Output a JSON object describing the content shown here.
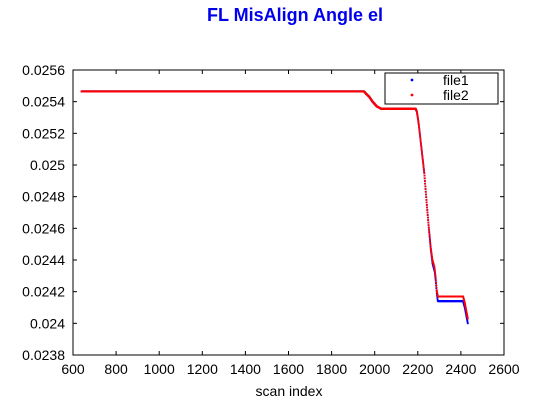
{
  "chart_data": {
    "type": "scatter",
    "title": "FL MisAlign Angle el",
    "xlabel": "scan index",
    "ylabel": "",
    "xlim": [
      600,
      2600
    ],
    "ylim": [
      0.0238,
      0.0256
    ],
    "xticks": [
      "600",
      "800",
      "1000",
      "1200",
      "1400",
      "1600",
      "1800",
      "2000",
      "2200",
      "2400",
      "2600"
    ],
    "yticks": [
      "0.0238",
      "0.024",
      "0.0242",
      "0.0244",
      "0.0246",
      "0.0248",
      "0.025",
      "0.0252",
      "0.0254",
      "0.0256"
    ],
    "grid": false,
    "legend": "top-right",
    "series": [
      {
        "name": "file1",
        "color": "#0000ff",
        "points": [
          [
            640,
            0.025465
          ],
          [
            1950,
            0.025465
          ],
          [
            1960,
            0.02545
          ],
          [
            1975,
            0.02543
          ],
          [
            1990,
            0.0254
          ],
          [
            2010,
            0.02537
          ],
          [
            2030,
            0.025355
          ],
          [
            2190,
            0.025355
          ],
          [
            2195,
            0.02534
          ],
          [
            2200,
            0.0253
          ],
          [
            2205,
            0.02525
          ],
          [
            2215,
            0.02513
          ],
          [
            2230,
            0.02495
          ],
          [
            2240,
            0.02478
          ],
          [
            2250,
            0.02462
          ],
          [
            2260,
            0.02447
          ],
          [
            2268,
            0.02438
          ],
          [
            2278,
            0.02433
          ],
          [
            2283,
            0.02427
          ],
          [
            2288,
            0.02419
          ],
          [
            2293,
            0.02414
          ],
          [
            2410,
            0.02414
          ],
          [
            2418,
            0.0241
          ],
          [
            2425,
            0.02405
          ],
          [
            2432,
            0.024
          ]
        ]
      },
      {
        "name": "file2",
        "color": "#ff0000",
        "points": [
          [
            640,
            0.025465
          ],
          [
            1950,
            0.025465
          ],
          [
            1960,
            0.02545
          ],
          [
            1975,
            0.02543
          ],
          [
            1990,
            0.0254
          ],
          [
            2010,
            0.02537
          ],
          [
            2030,
            0.025355
          ],
          [
            2190,
            0.025355
          ],
          [
            2195,
            0.02534
          ],
          [
            2200,
            0.0253
          ],
          [
            2205,
            0.02525
          ],
          [
            2215,
            0.02513
          ],
          [
            2230,
            0.02495
          ],
          [
            2240,
            0.02478
          ],
          [
            2250,
            0.02462
          ],
          [
            2260,
            0.02448
          ],
          [
            2268,
            0.0244
          ],
          [
            2278,
            0.02435
          ],
          [
            2283,
            0.02429
          ],
          [
            2288,
            0.02421
          ],
          [
            2293,
            0.02417
          ],
          [
            2410,
            0.02417
          ],
          [
            2418,
            0.02413
          ],
          [
            2425,
            0.02408
          ],
          [
            2432,
            0.02403
          ]
        ]
      }
    ]
  }
}
